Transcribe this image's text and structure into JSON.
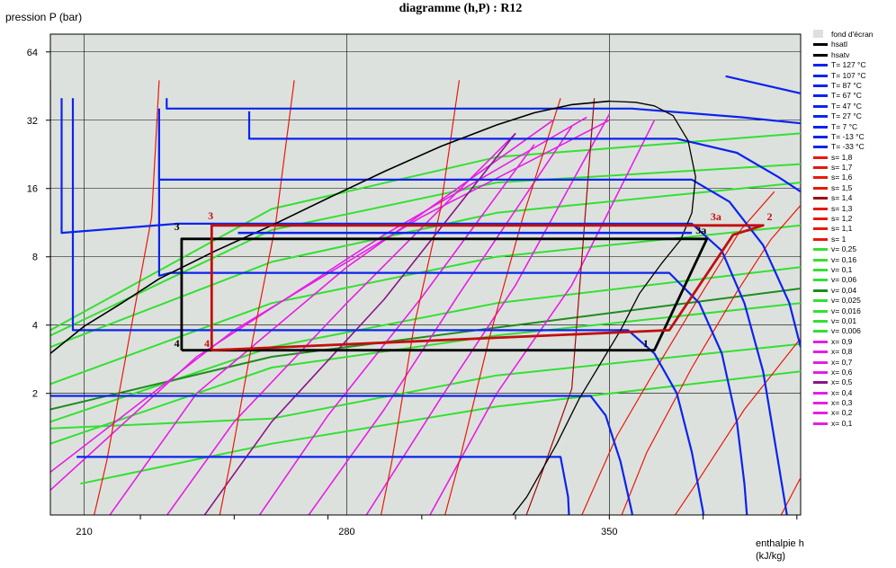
{
  "chart_data": {
    "type": "line",
    "title": "diagramme (h,P) : R12",
    "ylabel": "pression  P (bar)",
    "xlabel": "enthalpie  h (kJ/kg)",
    "x_ticks": [
      210,
      280,
      350
    ],
    "y_ticks": [
      2,
      4,
      8,
      16,
      32,
      64
    ],
    "xlim": [
      201,
      401
    ],
    "ylim_log2": [
      -0.78,
      6.26
    ],
    "y_scale": "log",
    "grid": true,
    "background": "#dde1dd",
    "legend_position": "right",
    "legend": [
      {
        "label": "fond d'écran",
        "color": "#dde1dd",
        "box": true
      },
      {
        "label": "hsatl",
        "color": "#000000"
      },
      {
        "label": "hsatv",
        "color": "#000000"
      },
      {
        "label": "T= 127 °C",
        "color": "#0b24ee"
      },
      {
        "label": "T= 107 °C",
        "color": "#0b24ee"
      },
      {
        "label": "T= 87 °C",
        "color": "#0b24ee"
      },
      {
        "label": "T= 67 °C",
        "color": "#0b24ee"
      },
      {
        "label": "T= 47 °C",
        "color": "#0b24ee"
      },
      {
        "label": "T= 27 °C",
        "color": "#0b24ee"
      },
      {
        "label": "T= 7 °C",
        "color": "#0b24ee"
      },
      {
        "label": "T= -13 °C",
        "color": "#0b24ee"
      },
      {
        "label": "T= -33 °C",
        "color": "#0b24ee"
      },
      {
        "label": "s= 1,8",
        "color": "#e8180c"
      },
      {
        "label": "s= 1,7",
        "color": "#e8180c"
      },
      {
        "label": "s= 1,6",
        "color": "#e8180c"
      },
      {
        "label": "s= 1,5",
        "color": "#e8180c"
      },
      {
        "label": "s= 1,4",
        "color": "#a00808"
      },
      {
        "label": "s= 1,3",
        "color": "#e8180c"
      },
      {
        "label": "s= 1,2",
        "color": "#e8180c"
      },
      {
        "label": "s= 1,1",
        "color": "#e8180c"
      },
      {
        "label": "s= 1",
        "color": "#e8180c"
      },
      {
        "label": "v= 0,25",
        "color": "#33e033"
      },
      {
        "label": "v= 0,16",
        "color": "#33e033"
      },
      {
        "label": "v= 0,1",
        "color": "#33e033"
      },
      {
        "label": "v= 0,06",
        "color": "#33e033"
      },
      {
        "label": "v= 0,04",
        "color": "#1e8c1e"
      },
      {
        "label": "v= 0,025",
        "color": "#33e033"
      },
      {
        "label": "v= 0,016",
        "color": "#33e033"
      },
      {
        "label": "v= 0,01",
        "color": "#33e033"
      },
      {
        "label": "v= 0,006",
        "color": "#33e033"
      },
      {
        "label": "x= 0,9",
        "color": "#e61ee6"
      },
      {
        "label": "x= 0,8",
        "color": "#e61ee6"
      },
      {
        "label": "x= 0,7",
        "color": "#e61ee6"
      },
      {
        "label": "x= 0,6",
        "color": "#e61ee6"
      },
      {
        "label": "x= 0,5",
        "color": "#8c148c"
      },
      {
        "label": "x= 0,4",
        "color": "#e61ee6"
      },
      {
        "label": "x= 0,3",
        "color": "#e61ee6"
      },
      {
        "label": "x= 0,2",
        "color": "#e61ee6"
      },
      {
        "label": "x= 0,1",
        "color": "#e61ee6"
      }
    ],
    "saturation_dome": {
      "liquid": [
        [
          201,
          3.0
        ],
        [
          210,
          3.95
        ],
        [
          220,
          5.0
        ],
        [
          230,
          6.4
        ],
        [
          245,
          8.5
        ],
        [
          260,
          11.0
        ],
        [
          275,
          14.5
        ],
        [
          290,
          19.0
        ],
        [
          305,
          24.5
        ],
        [
          320,
          30.5
        ],
        [
          330,
          34.5
        ],
        [
          340,
          37.5
        ],
        [
          350,
          38.8
        ]
      ],
      "vapor": [
        [
          350,
          38.8
        ],
        [
          357,
          38.4
        ],
        [
          362,
          37.0
        ],
        [
          367,
          33.5
        ],
        [
          371,
          26.0
        ],
        [
          373,
          18.0
        ],
        [
          372,
          12.5
        ],
        [
          369,
          9.5
        ],
        [
          364,
          7.5
        ],
        [
          358,
          5.5
        ],
        [
          353,
          3.8
        ],
        [
          347,
          2.6
        ],
        [
          342,
          1.9
        ],
        [
          336,
          1.2
        ],
        [
          328,
          0.7
        ],
        [
          319,
          0.45
        ],
        [
          312,
          0.34
        ]
      ]
    },
    "isotherms": [
      {
        "T": "127",
        "points": [
          [
            381,
            50
          ],
          [
            401,
            42
          ]
        ]
      },
      {
        "T": "107",
        "points": [
          [
            232,
            40
          ],
          [
            232,
            36
          ],
          [
            240,
            36
          ],
          [
            251,
            36
          ],
          [
            356,
            36
          ],
          [
            385,
            33
          ],
          [
            401,
            31
          ]
        ]
      },
      {
        "T": "87",
        "points": [
          [
            254,
            35
          ],
          [
            254,
            26.5
          ],
          [
            258,
            26.5
          ],
          [
            368,
            26.5
          ],
          [
            384,
            23
          ],
          [
            395,
            18
          ],
          [
            401,
            15.5
          ]
        ]
      },
      {
        "T": "67",
        "points": [
          [
            230,
            33
          ],
          [
            230,
            17.5
          ],
          [
            236,
            17.5
          ],
          [
            372,
            17.5
          ],
          [
            382,
            14
          ],
          [
            391,
            9
          ],
          [
            398,
            5
          ],
          [
            401,
            3.2
          ]
        ]
      },
      {
        "T": "47",
        "points": [
          [
            204,
            40
          ],
          [
            204,
            10.2
          ],
          [
            235,
            11.2
          ],
          [
            372,
            11.2
          ],
          [
            380,
            8.5
          ],
          [
            386,
            5
          ],
          [
            391,
            2.5
          ],
          [
            395,
            1.0
          ],
          [
            398,
            0.5
          ],
          [
            399.5,
            0.36
          ],
          [
            400,
            0.32
          ]
        ]
      },
      {
        "T": "27",
        "points": [
          [
            230,
            36
          ],
          [
            230,
            6.6
          ],
          [
            233,
            6.8
          ],
          [
            366,
            6.8
          ],
          [
            374,
            5.0
          ],
          [
            380,
            3.0
          ],
          [
            384,
            1.5
          ],
          [
            386,
            0.8
          ],
          [
            387,
            0.5
          ],
          [
            387.3,
            0.32
          ]
        ]
      },
      {
        "T": "7",
        "points": [
          [
            207,
            40
          ],
          [
            207,
            3.8
          ],
          [
            212,
            3.8
          ],
          [
            355,
            3.8
          ],
          [
            362,
            3.0
          ],
          [
            368,
            2.0
          ],
          [
            372,
            1.1
          ],
          [
            375,
            0.6
          ],
          [
            376,
            0.32
          ]
        ]
      },
      {
        "T": "-13",
        "points": [
          [
            201,
            1.95
          ],
          [
            345,
            1.95
          ],
          [
            349,
            1.6
          ],
          [
            353,
            1.0
          ],
          [
            356,
            0.6
          ],
          [
            358,
            0.32
          ]
        ]
      },
      {
        "T": "-33",
        "points": [
          [
            208,
            1.05
          ],
          [
            337,
            1.05
          ],
          [
            339,
            0.7
          ],
          [
            340,
            0.32
          ]
        ]
      }
    ],
    "isentropes": [
      {
        "s": "1,8",
        "points": [
          [
            389,
            0.32
          ],
          [
            395,
            0.55
          ],
          [
            401,
            0.85
          ]
        ]
      },
      {
        "s": "1,7",
        "points": [
          [
            357,
            0.32
          ],
          [
            372,
            0.75
          ],
          [
            386,
            1.7
          ],
          [
            401,
            3.5
          ]
        ]
      },
      {
        "s": "1,6",
        "points": [
          [
            347,
            0.32
          ],
          [
            360,
            1.1
          ],
          [
            372,
            2.6
          ],
          [
            384,
            5.6
          ],
          [
            393,
            9.5
          ],
          [
            401,
            13.5
          ]
        ]
      },
      {
        "s": "1,5",
        "points": [
          [
            342,
            0.55
          ],
          [
            352,
            1.3
          ],
          [
            362,
            2.5
          ],
          [
            373,
            5.0
          ],
          [
            385,
            10.5
          ],
          [
            394,
            15.5
          ]
        ]
      },
      {
        "s": "1,4",
        "points": [
          [
            322,
            0.32
          ],
          [
            331,
            0.8
          ],
          [
            340,
            2.1
          ],
          [
            346,
            40
          ]
        ]
      },
      {
        "s": "1,3",
        "points": [
          [
            302,
            0.32
          ],
          [
            310,
            1.0
          ],
          [
            318,
            3.5
          ],
          [
            327,
            12
          ],
          [
            337,
            40
          ]
        ]
      },
      {
        "s": "1,2",
        "points": [
          [
            286,
            0.32
          ],
          [
            292,
            1.0
          ],
          [
            298,
            4.0
          ],
          [
            305,
            13
          ],
          [
            310,
            48
          ]
        ]
      },
      {
        "s": "1,1",
        "points": [
          [
            243,
            0.32
          ],
          [
            249,
            1.0
          ],
          [
            255,
            3.5
          ],
          [
            261,
            11
          ],
          [
            266,
            48
          ]
        ]
      },
      {
        "s": "1",
        "points": [
          [
            209,
            0.32
          ],
          [
            216,
            1.0
          ],
          [
            222,
            3.5
          ],
          [
            228,
            12
          ],
          [
            230,
            48
          ]
        ]
      },
      {
        "s": "0,9",
        "points": [
          [
            201,
            2.8
          ],
          [
            201,
            48
          ]
        ]
      }
    ],
    "isochores": [
      {
        "v": "0,25",
        "points": [
          [
            209,
            0.8
          ],
          [
            260,
            1.2
          ],
          [
            320,
            1.75
          ],
          [
            401,
            2.5
          ]
        ]
      },
      {
        "v": "0,16",
        "points": [
          [
            201,
            1.4
          ],
          [
            260,
            1.55
          ],
          [
            320,
            2.4
          ],
          [
            401,
            3.3
          ]
        ]
      },
      {
        "v": "0,1",
        "points": [
          [
            201,
            1.2
          ],
          [
            260,
            2.6
          ],
          [
            320,
            3.6
          ],
          [
            401,
            5.0
          ]
        ]
      },
      {
        "v": "0,06",
        "points": [
          [
            201,
            1.5
          ],
          [
            260,
            3.2
          ],
          [
            320,
            5.0
          ],
          [
            401,
            7.2
          ]
        ]
      },
      {
        "v": "0,04",
        "points": [
          [
            201,
            1.7
          ],
          [
            260,
            2.9
          ],
          [
            320,
            3.9
          ],
          [
            401,
            5.8
          ]
        ]
      },
      {
        "v": "0,025",
        "points": [
          [
            201,
            2.2
          ],
          [
            260,
            5.0
          ],
          [
            320,
            8.0
          ],
          [
            401,
            11.0
          ]
        ]
      },
      {
        "v": "0,016",
        "points": [
          [
            201,
            3.2
          ],
          [
            260,
            7.6
          ],
          [
            320,
            12.5
          ],
          [
            401,
            17.0
          ]
        ]
      },
      {
        "v": "0,01",
        "points": [
          [
            201,
            3.6
          ],
          [
            260,
            10.5
          ],
          [
            320,
            17
          ],
          [
            401,
            20.5
          ]
        ]
      },
      {
        "v": "0,006",
        "points": [
          [
            201,
            3.8
          ],
          [
            260,
            13
          ],
          [
            320,
            22
          ],
          [
            401,
            28
          ]
        ]
      }
    ],
    "quality_lines": [
      {
        "x": "0,9",
        "points": [
          [
            201,
            0.9
          ],
          [
            250,
            3.8
          ],
          [
            300,
            12
          ],
          [
            350,
            32
          ]
        ]
      },
      {
        "x": "0,8",
        "points": [
          [
            201,
            0.75
          ],
          [
            240,
            2.9
          ],
          [
            290,
            10
          ],
          [
            344,
            33
          ]
        ]
      },
      {
        "x": "0,7",
        "points": [
          [
            212,
            0.45
          ],
          [
            240,
            2.0
          ],
          [
            280,
            7.2
          ],
          [
            335,
            32
          ]
        ]
      },
      {
        "x": "0,6",
        "points": [
          [
            225,
            0.4
          ],
          [
            250,
            1.5
          ],
          [
            280,
            5.0
          ],
          [
            325,
            28
          ]
        ]
      },
      {
        "x": "0,5",
        "points": [
          [
            235,
            0.4
          ],
          [
            260,
            1.5
          ],
          [
            290,
            5.2
          ],
          [
            325,
            28
          ]
        ]
      },
      {
        "x": "0,4",
        "points": [
          [
            250,
            0.4
          ],
          [
            275,
            1.6
          ],
          [
            300,
            5.3
          ],
          [
            330,
            25
          ]
        ]
      },
      {
        "x": "0,3",
        "points": [
          [
            265,
            0.45
          ],
          [
            290,
            1.7
          ],
          [
            310,
            5.5
          ],
          [
            340,
            30
          ]
        ]
      },
      {
        "x": "0,2",
        "points": [
          [
            282,
            0.48
          ],
          [
            305,
            1.9
          ],
          [
            325,
            6.0
          ],
          [
            350,
            34
          ]
        ]
      },
      {
        "x": "0,1",
        "points": [
          [
            300,
            0.5
          ],
          [
            320,
            2.0
          ],
          [
            340,
            6.0
          ],
          [
            362,
            32
          ]
        ]
      }
    ],
    "cycle_black": [
      [
        236,
        3.1
      ],
      [
        236,
        9.6
      ],
      [
        376,
        9.6
      ],
      [
        362,
        3.1
      ],
      [
        236,
        3.1
      ]
    ],
    "cycle_red": [
      [
        244,
        3.1
      ],
      [
        244,
        11.0
      ],
      [
        391,
        11.0
      ],
      [
        383,
        10.0
      ],
      [
        366,
        3.8
      ],
      [
        244,
        3.1
      ]
    ],
    "cycle_blue": [
      [
        251,
        10.2
      ],
      [
        372,
        10.2
      ]
    ],
    "point_labels": [
      {
        "text": "1",
        "h": 359,
        "p": 3.2,
        "color": "#000000"
      },
      {
        "text": "3",
        "h": 234,
        "p": 10.5,
        "color": "#000000"
      },
      {
        "text": "4",
        "h": 234,
        "p": 3.2,
        "color": "#000000"
      },
      {
        "text": "3",
        "h": 243,
        "p": 11.7,
        "color": "#c01010"
      },
      {
        "text": "4",
        "h": 242,
        "p": 3.2,
        "color": "#c01010"
      },
      {
        "text": "3a",
        "h": 377,
        "p": 11.6,
        "color": "#c01010"
      },
      {
        "text": "2",
        "h": 392,
        "p": 11.6,
        "color": "#c01010"
      },
      {
        "text": "3a",
        "h": 373,
        "p": 10.1,
        "color": "#000000"
      }
    ]
  }
}
